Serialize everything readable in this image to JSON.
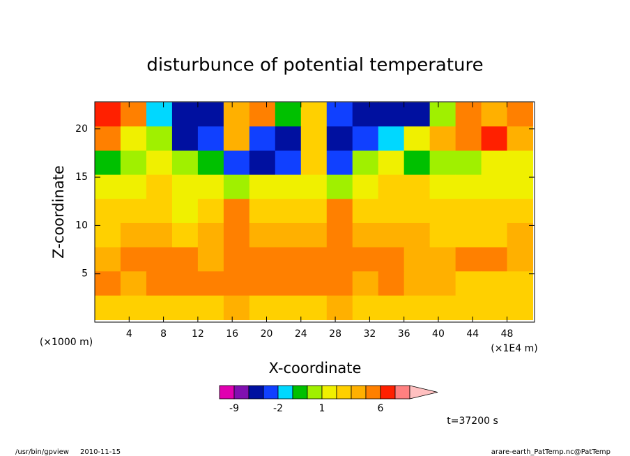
{
  "chart_data": {
    "type": "contour",
    "title": "disturbunce of potential temperature",
    "x_label": "X-coordinate",
    "y_label": "Z-coordinate",
    "x_unit_left": "(×1000 m)",
    "x_unit_right": "(×1E4 m)",
    "time_label": "t=37200 s",
    "footer_left": [
      "/usr/bin/gpview",
      "2010-11-15"
    ],
    "footer_right": "arare-earth_PatTemp.nc@PatTemp",
    "xlim": [
      0,
      51.2
    ],
    "ylim": [
      0,
      22.8
    ],
    "xticks": [
      4,
      8,
      12,
      16,
      20,
      24,
      28,
      32,
      36,
      40,
      44,
      48
    ],
    "yticks": [
      5,
      10,
      15,
      20
    ],
    "x": [
      1.5,
      4.5,
      7.5,
      10.5,
      13.5,
      16.5,
      19.5,
      22.5,
      25.5,
      28.5,
      31.5,
      34.5,
      37.5,
      40.5,
      43.5,
      46.5,
      49.5
    ],
    "y": [
      21.5,
      19,
      16.5,
      14,
      11.5,
      9,
      6.5,
      4,
      1.5
    ],
    "z": [
      [
        7,
        4,
        -2,
        -5,
        -4,
        3,
        4,
        -1,
        2,
        -3,
        -4,
        -4,
        -4,
        0,
        4,
        3,
        4
      ],
      [
        5,
        1,
        0,
        -4,
        -3,
        3,
        -3,
        -4,
        2,
        -4,
        -3,
        -2,
        1,
        3,
        4,
        7,
        3
      ],
      [
        -1,
        0,
        1,
        0,
        -1,
        -3,
        -4,
        -3,
        2,
        -3,
        0,
        1,
        -1,
        0,
        0,
        1,
        1
      ],
      [
        1,
        1,
        2,
        1,
        1,
        0,
        1,
        1,
        1,
        0,
        1,
        2,
        2,
        1,
        1,
        1,
        1
      ],
      [
        2,
        2,
        2,
        1,
        2,
        4,
        2,
        2,
        2,
        4,
        2,
        2,
        2,
        2,
        2,
        2,
        2
      ],
      [
        2,
        3,
        3,
        2,
        3,
        4,
        3,
        3,
        3,
        4,
        3,
        3,
        3,
        2,
        2,
        2,
        3
      ],
      [
        3,
        4,
        4,
        4,
        3,
        5,
        4,
        4,
        4,
        5,
        4,
        4,
        3,
        3,
        4,
        4,
        3
      ],
      [
        4,
        3,
        4,
        4,
        4,
        5,
        4,
        4,
        4,
        5,
        3,
        4,
        3,
        3,
        2,
        2,
        2
      ],
      [
        2,
        2,
        2,
        2,
        2,
        3,
        2,
        2,
        2,
        3,
        2,
        2,
        2,
        2,
        2,
        2,
        2
      ]
    ],
    "colorbar": {
      "levels": [
        -9,
        -6,
        -3,
        -2,
        -1,
        0,
        1,
        2,
        3,
        4,
        6,
        8,
        10
      ],
      "colors": [
        "#e000b0",
        "#8010b0",
        "#0010a0",
        "#1040ff",
        "#00d8ff",
        "#00c000",
        "#a0f000",
        "#f0f000",
        "#ffd000",
        "#ffb000",
        "#ff8000",
        "#ff2000",
        "#ff8080",
        "#ffc0c0"
      ],
      "ticks": [
        -9,
        -2,
        1,
        6
      ]
    }
  }
}
